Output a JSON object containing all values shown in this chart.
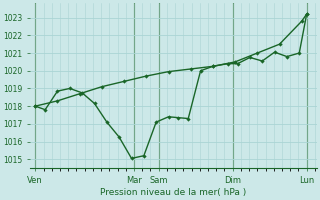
{
  "background_color": "#cce8e8",
  "grid_color": "#aad4d4",
  "line_color": "#1a6628",
  "vline_color": "#2d6e2d",
  "xlabel": "Pression niveau de la mer( hPa )",
  "ylim": [
    1014.5,
    1023.8
  ],
  "yticks": [
    1015,
    1016,
    1017,
    1018,
    1019,
    1020,
    1021,
    1022,
    1023
  ],
  "xtick_labels": [
    "Ven",
    "Mar",
    "Sam",
    "Dim",
    "Lun"
  ],
  "xtick_positions": [
    0,
    4,
    5,
    8,
    11
  ],
  "xlim": [
    -0.2,
    11.4
  ],
  "smooth_x": [
    0,
    0.9,
    1.8,
    2.7,
    3.6,
    4.5,
    5.4,
    6.3,
    7.2,
    8.1,
    9.0,
    9.9,
    10.8,
    11.0
  ],
  "smooth_y": [
    1018.0,
    1018.3,
    1018.7,
    1019.1,
    1019.4,
    1019.7,
    1019.95,
    1020.1,
    1020.25,
    1020.5,
    1021.0,
    1021.5,
    1022.8,
    1023.2
  ],
  "jagged_x": [
    0,
    0.4,
    0.9,
    1.4,
    1.9,
    2.4,
    2.9,
    3.4,
    3.9,
    4.4,
    4.9,
    5.4,
    5.8,
    6.2,
    6.7,
    7.2,
    7.8,
    8.2,
    8.7,
    9.2,
    9.7,
    10.2,
    10.7,
    11.0
  ],
  "jagged_y": [
    1018.0,
    1017.8,
    1018.85,
    1019.0,
    1018.75,
    1018.15,
    1017.1,
    1016.25,
    1015.05,
    1015.2,
    1017.1,
    1017.4,
    1017.35,
    1017.3,
    1020.0,
    1020.25,
    1020.4,
    1020.4,
    1020.75,
    1020.55,
    1021.05,
    1020.8,
    1021.0,
    1023.2
  ]
}
